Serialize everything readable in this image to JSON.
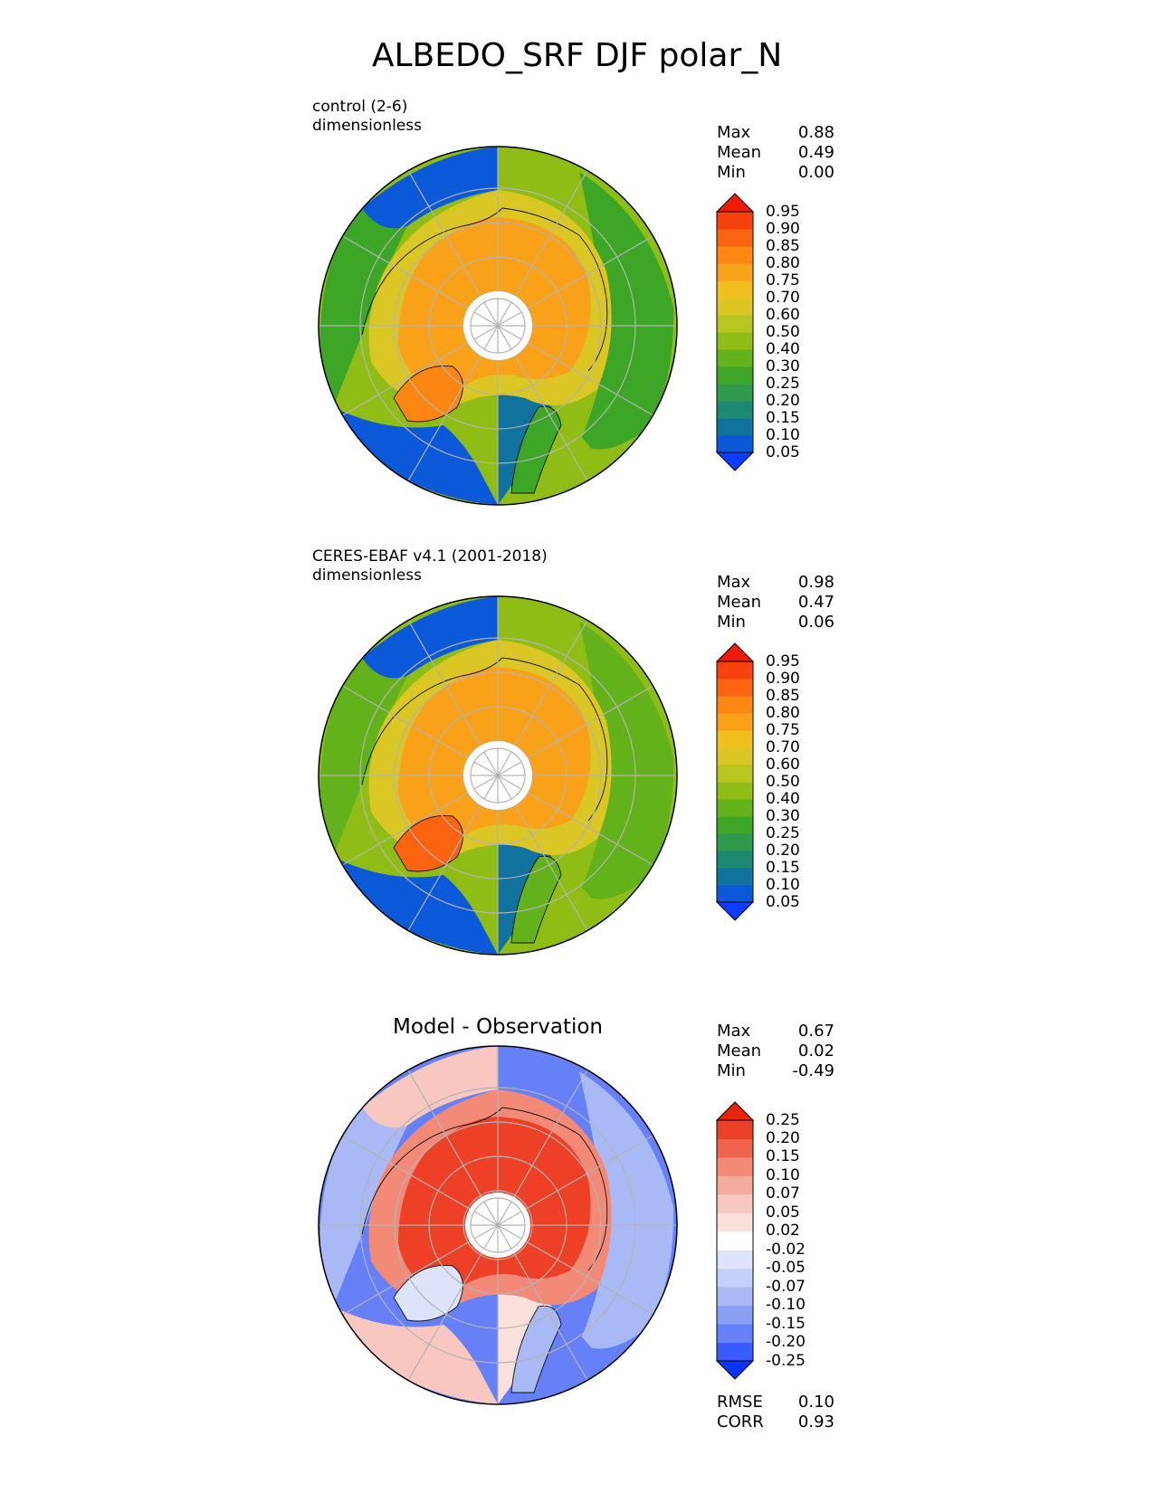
{
  "title": "ALBEDO_SRF DJF polar_N",
  "chart_data": [
    {
      "type": "heatmap",
      "projection": "north-polar-stereographic",
      "label_line1": "control (2-6)",
      "label_line2": "dimensionless",
      "stats": {
        "max": "0.88",
        "mean": "0.49",
        "min": "0.00"
      },
      "colorbar": {
        "extend": "both",
        "levels": [
          "0.05",
          "0.10",
          "0.15",
          "0.20",
          "0.25",
          "0.30",
          "0.40",
          "0.50",
          "0.60",
          "0.70",
          "0.75",
          "0.80",
          "0.85",
          "0.90",
          "0.95"
        ],
        "colors": [
          "#0b3cff",
          "#0b58d8",
          "#11729e",
          "#1f8870",
          "#2f9a4b",
          "#3ea627",
          "#63b21c",
          "#8fbd16",
          "#b7c720",
          "#dac725",
          "#f2bd1e",
          "#f9a118",
          "#fb8712",
          "#fa6410",
          "#f7420d",
          "#f01b08"
        ],
        "low_color": "#0b3cff",
        "high_color": "#f01b08"
      },
      "regions": {
        "ocean_low": "#0b58d8",
        "ocean_mid": "#11729e",
        "grass_low": "#3ea627",
        "grass_mid": "#8fbd16",
        "snow_mid": "#dac725",
        "snow_high": "#f9a118",
        "ice_high": "#fb8712"
      },
      "pole_gap": true
    },
    {
      "type": "heatmap",
      "projection": "north-polar-stereographic",
      "label_line1": "CERES-EBAF v4.1 (2001-2018)",
      "label_line2": "dimensionless",
      "stats": {
        "max": "0.98",
        "mean": "0.47",
        "min": "0.06"
      },
      "colorbar": {
        "extend": "both",
        "levels": [
          "0.05",
          "0.10",
          "0.15",
          "0.20",
          "0.25",
          "0.30",
          "0.40",
          "0.50",
          "0.60",
          "0.70",
          "0.75",
          "0.80",
          "0.85",
          "0.90",
          "0.95"
        ],
        "colors": [
          "#0b3cff",
          "#0b58d8",
          "#11729e",
          "#1f8870",
          "#2f9a4b",
          "#3ea627",
          "#63b21c",
          "#8fbd16",
          "#b7c720",
          "#dac725",
          "#f2bd1e",
          "#f9a118",
          "#fb8712",
          "#fa6410",
          "#f7420d",
          "#f01b08"
        ],
        "low_color": "#0b3cff",
        "high_color": "#f01b08"
      },
      "regions": {
        "ocean_low": "#0b58d8",
        "ocean_mid": "#11729e",
        "grass_low": "#63b21c",
        "grass_mid": "#8fbd16",
        "snow_mid": "#dac725",
        "snow_high": "#f9a118",
        "ice_high": "#fa6410"
      },
      "pole_gap": true
    },
    {
      "type": "heatmap",
      "projection": "north-polar-stereographic",
      "title": "Model - Observation",
      "stats": {
        "max": "0.67",
        "mean": "0.02",
        "min": "-0.49"
      },
      "metrics": {
        "rmse_label": "RMSE",
        "rmse": "0.10",
        "corr_label": "CORR",
        "corr": "0.93"
      },
      "colorbar": {
        "extend": "both",
        "levels": [
          "-0.25",
          "-0.20",
          "-0.15",
          "-0.10",
          "-0.07",
          "-0.05",
          "-0.02",
          "0.02",
          "0.05",
          "0.07",
          "0.10",
          "0.15",
          "0.20",
          "0.25"
        ],
        "colors": [
          "#0a33ff",
          "#3a5cff",
          "#6680f8",
          "#8aa0f3",
          "#a8b9f5",
          "#c4d0f7",
          "#dde4fa",
          "#ffffff",
          "#fbe0dc",
          "#f8c8c0",
          "#f5ab9e",
          "#f38a78",
          "#f0634e",
          "#ed4027",
          "#e8240a"
        ],
        "low_color": "#0a33ff",
        "high_color": "#e8240a"
      },
      "regions": {
        "ocean_low": "#f8c8c0",
        "ocean_mid": "#fbe0dc",
        "grass_low": "#a8b9f5",
        "grass_mid": "#6680f8",
        "snow_mid": "#f38a78",
        "snow_high": "#ed4027",
        "ice_high": "#dde4fa"
      },
      "pole_gap": false
    }
  ],
  "stat_labels": {
    "max": "Max",
    "mean": "Mean",
    "min": "Min"
  }
}
